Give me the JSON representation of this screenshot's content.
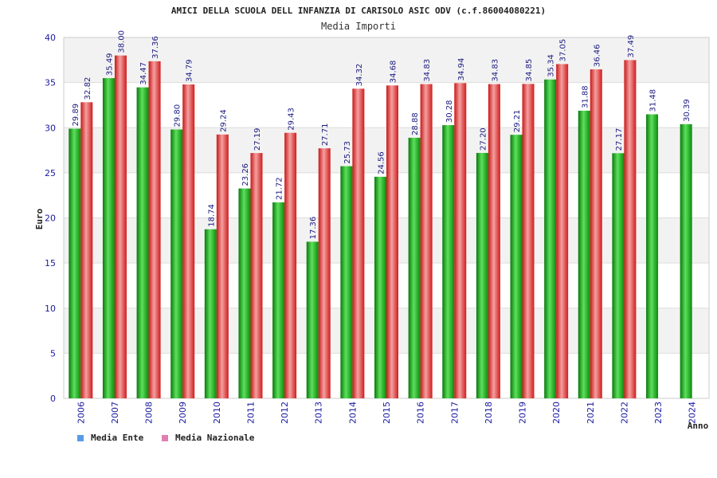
{
  "chart_data": {
    "type": "bar",
    "title": "AMICI DELLA SCUOLA DELL INFANZIA DI CARISOLO ASIC ODV (c.f.86004080221)",
    "subtitle": "Media Importi",
    "xlabel": "Anno",
    "ylabel": "Euro",
    "ylim": [
      0,
      40
    ],
    "yticks": [
      0,
      5,
      10,
      15,
      20,
      25,
      30,
      35,
      40
    ],
    "grid": true,
    "legend_position": "bottom-left",
    "categories": [
      "2006",
      "2007",
      "2008",
      "2009",
      "2010",
      "2011",
      "2012",
      "2013",
      "2014",
      "2015",
      "2016",
      "2017",
      "2018",
      "2019",
      "2020",
      "2021",
      "2022",
      "2023",
      "2024"
    ],
    "series": [
      {
        "name": "Media Ente",
        "color": "#1aa31a",
        "legend_color": "#5a9be8",
        "values": [
          29.89,
          35.49,
          34.47,
          29.8,
          18.74,
          23.26,
          21.72,
          17.36,
          25.73,
          24.56,
          28.88,
          30.28,
          27.2,
          29.21,
          35.34,
          31.88,
          27.17,
          31.48,
          30.39
        ],
        "labels": [
          "29.89",
          "35.49",
          "34.47",
          "29.80",
          "18.74",
          "23.26",
          "21.72",
          "17.36",
          "25.73",
          "24.56",
          "28.88",
          "30.28",
          "27.20",
          "29.21",
          "35.34",
          "31.88",
          "27.17",
          "31.48",
          "30.39"
        ]
      },
      {
        "name": "Media Nazionale",
        "color": "#e02828",
        "legend_color": "#e080b0",
        "values": [
          32.82,
          38.0,
          37.36,
          34.79,
          29.24,
          27.19,
          29.43,
          27.71,
          34.32,
          34.68,
          34.83,
          34.94,
          34.83,
          34.85,
          37.05,
          36.46,
          37.49,
          null,
          null
        ],
        "labels": [
          "32.82",
          "38.00",
          "37.36",
          "34.79",
          "29.24",
          "27.19",
          "29.43",
          "27.71",
          "34.32",
          "34.68",
          "34.83",
          "34.94",
          "34.83",
          "34.85",
          "37.05",
          "36.46",
          "37.49",
          "",
          ""
        ]
      }
    ]
  }
}
